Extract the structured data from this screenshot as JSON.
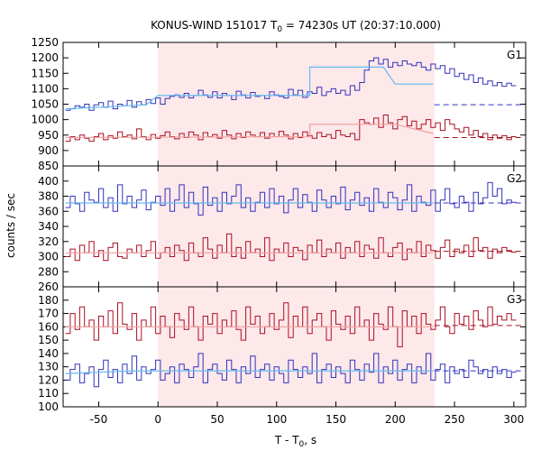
{
  "chart_data": {
    "type": "line",
    "title_main": "KONUS-WIND 151017 T",
    "title_sub": "0",
    "title_rest": " = 74230s UT (20:37:10.000)",
    "xlabel_main": "T - T",
    "xlabel_sub": "0",
    "xlabel_rest": ", s",
    "ylabel": "counts / sec",
    "xlim": [
      -80,
      310
    ],
    "xticks": [
      -50,
      0,
      50,
      100,
      150,
      200,
      250,
      300
    ],
    "highlight_interval": [
      0,
      233
    ],
    "highlight_color": "#fde8ea",
    "bin_width": 4.0,
    "data_start": -78,
    "colors": {
      "low_channel": "#3333bb",
      "high_channel": "#aa1122",
      "fit": "#66bbee",
      "fit_red": "#f0a0a0",
      "background_blue": "#3333cc",
      "background_red": "#aa1122"
    },
    "panels": [
      {
        "label": "G1",
        "ylim": [
          850,
          1250
        ],
        "yticks": [
          850,
          900,
          950,
          1000,
          1050,
          1100,
          1150,
          1200,
          1250
        ],
        "series": [
          {
            "channel": "blue",
            "background_level": 1048,
            "values": [
              1030,
              1035,
              1045,
              1040,
              1050,
              1030,
              1048,
              1055,
              1040,
              1060,
              1035,
              1050,
              1045,
              1062,
              1040,
              1058,
              1048,
              1065,
              1052,
              1070,
              1050,
              1068,
              1075,
              1080,
              1072,
              1085,
              1070,
              1078,
              1095,
              1080,
              1072,
              1090,
              1070,
              1085,
              1078,
              1065,
              1092,
              1080,
              1070,
              1088,
              1075,
              1078,
              1068,
              1090,
              1080,
              1075,
              1070,
              1098,
              1080,
              1095,
              1072,
              1090,
              1085,
              1105,
              1078,
              1090,
              1100,
              1085,
              1095,
              1080,
              1110,
              1095,
              1120,
              1160,
              1190,
              1200,
              1180,
              1195,
              1170,
              1185,
              1175,
              1190,
              1180,
              1175,
              1185,
              1170,
              1160,
              1180,
              1165,
              1175,
              1150,
              1165,
              1140,
              1150,
              1130,
              1145,
              1120,
              1135,
              1115,
              1125,
              1110,
              1120,
              1108,
              1118,
              1110
            ],
            "fit": [
              [
                -78,
                1035
              ],
              [
                -50,
                1040
              ],
              [
                -10,
                1048
              ],
              [
                0,
                1078
              ],
              [
                105,
                1078
              ],
              [
                128,
                1078
              ],
              [
                128,
                1170
              ],
              [
                190,
                1170
              ],
              [
                200,
                1115
              ],
              [
                232,
                1115
              ]
            ]
          },
          {
            "channel": "red",
            "background_level": 942,
            "values": [
              930,
              945,
              935,
              950,
              940,
              930,
              945,
              955,
              935,
              948,
              940,
              960,
              945,
              950,
              938,
              970,
              945,
              935,
              952,
              940,
              948,
              960,
              945,
              938,
              955,
              942,
              960,
              950,
              935,
              958,
              945,
              952,
              940,
              965,
              950,
              938,
              955,
              942,
              960,
              950,
              945,
              958,
              940,
              955,
              945,
              962,
              950,
              938,
              955,
              942,
              960,
              948,
              940,
              958,
              945,
              952,
              940,
              965,
              950,
              945,
              955,
              935,
              1000,
              990,
              985,
              1005,
              975,
              1015,
              990,
              970,
              1000,
              1010,
              980,
              995,
              970,
              985,
              1000,
              975,
              990,
              965,
              1000,
              985,
              970,
              960,
              975,
              950,
              965,
              945,
              955,
              935,
              950,
              940,
              948,
              935,
              945
            ],
            "fit": [
              [
                -78,
                942
              ],
              [
                128,
                945
              ],
              [
                128,
                985
              ],
              [
                200,
                985
              ],
              [
                232,
                955
              ]
            ]
          }
        ]
      },
      {
        "label": "G2",
        "ylim": [
          260,
          420
        ],
        "yticks": [
          260,
          280,
          300,
          320,
          340,
          360,
          380,
          400
        ],
        "series": [
          {
            "channel": "blue",
            "background_level": 371,
            "values": [
              365,
              380,
              370,
              360,
              385,
              375,
              372,
              390,
              365,
              378,
              360,
              395,
              370,
              380,
              365,
              375,
              388,
              362,
              372,
              380,
              368,
              390,
              360,
              375,
              395,
              365,
              385,
              370,
              355,
              392,
              368,
              378,
              360,
              385,
              370,
              380,
              395,
              365,
              378,
              360,
              372,
              385,
              365,
              390,
              370,
              380,
              358,
              375,
              390,
              365,
              382,
              372,
              360,
              388,
              375,
              365,
              380,
              370,
              392,
              362,
              375,
              385,
              368,
              378,
              360,
              390,
              372,
              365,
              385,
              378,
              362,
              375,
              395,
              360,
              380,
              372,
              368,
              388,
              360,
              375,
              390,
              370,
              365,
              380,
              372,
              360,
              385,
              370,
              378,
              398,
              380,
              390,
              370,
              375,
              372
            ],
            "fit": [
              [
                -78,
                371
              ],
              [
                232,
                371
              ]
            ]
          },
          {
            "channel": "red",
            "background_level": 307,
            "values": [
              300,
              310,
              295,
              315,
              305,
              320,
              300,
              308,
              295,
              312,
              318,
              300,
              298,
              310,
              305,
              315,
              300,
              308,
              320,
              298,
              305,
              312,
              300,
              315,
              308,
              295,
              318,
              305,
              300,
              325,
              310,
              298,
              315,
              305,
              330,
              300,
              312,
              298,
              320,
              305,
              310,
              300,
              325,
              295,
              310,
              305,
              318,
              300,
              312,
              308,
              296,
              315,
              305,
              322,
              300,
              310,
              305,
              318,
              298,
              312,
              305,
              320,
              300,
              315,
              310,
              298,
              325,
              305,
              300,
              312,
              318,
              296,
              310,
              305,
              320,
              300,
              315,
              308,
              298,
              312,
              322,
              300,
              310,
              305,
              315,
              300,
              325,
              308,
              312,
              298,
              310,
              305,
              312,
              308,
              306
            ],
            "fit": [
              [
                -78,
                305
              ],
              [
                232,
                305
              ]
            ]
          }
        ]
      },
      {
        "label": "G3",
        "ylim": [
          100,
          190
        ],
        "yticks": [
          100,
          110,
          120,
          130,
          140,
          150,
          160,
          170,
          180
        ],
        "series": [
          {
            "channel": "red",
            "background_level": 161,
            "values": [
              155,
              170,
              158,
              175,
              160,
              165,
              150,
              168,
              160,
              172,
              155,
              178,
              162,
              158,
              170,
              150,
              165,
              160,
              175,
              155,
              168,
              160,
              152,
              170,
              165,
              158,
              175,
              160,
              150,
              168,
              162,
              170,
              155,
              165,
              160,
              172,
              158,
              150,
              175,
              162,
              168,
              155,
              160,
              170,
              158,
              165,
              178,
              152,
              168,
              160,
              175,
              155,
              165,
              170,
              160,
              150,
              172,
              162,
              158,
              168,
              155,
              175,
              160,
              165,
              150,
              170,
              162,
              158,
              175,
              160,
              145,
              172,
              160,
              168,
              155,
              170,
              162,
              158,
              165,
              175,
              160,
              155,
              170,
              162,
              168,
              158,
              172,
              165,
              160,
              175,
              162,
              168,
              165,
              170,
              165
            ],
            "fit": [
              [
                -78,
                160
              ],
              [
                232,
                160
              ]
            ]
          },
          {
            "channel": "blue",
            "background_level": 127,
            "values": [
              120,
              128,
              132,
              118,
              125,
              130,
              115,
              128,
              135,
              122,
              128,
              118,
              132,
              125,
              138,
              120,
              130,
              125,
              128,
              135,
              120,
              125,
              130,
              118,
              132,
              128,
              122,
              130,
              140,
              118,
              128,
              132,
              125,
              120,
              135,
              128,
              118,
              130,
              125,
              138,
              122,
              128,
              132,
              120,
              130,
              125,
              118,
              135,
              128,
              122,
              130,
              125,
              140,
              118,
              128,
              132,
              122,
              130,
              125,
              118,
              135,
              128,
              120,
              132,
              126,
              140,
              118,
              130,
              125,
              135,
              120,
              128,
              132,
              118,
              130,
              125,
              140,
              120,
              128,
              132,
              118,
              130,
              125,
              128,
              122,
              135,
              130,
              125,
              128,
              122,
              130,
              125,
              128,
              122,
              126
            ],
            "fit": [
              [
                -78,
                125
              ],
              [
                -20,
                127
              ],
              [
                232,
                127
              ]
            ]
          }
        ]
      }
    ]
  }
}
